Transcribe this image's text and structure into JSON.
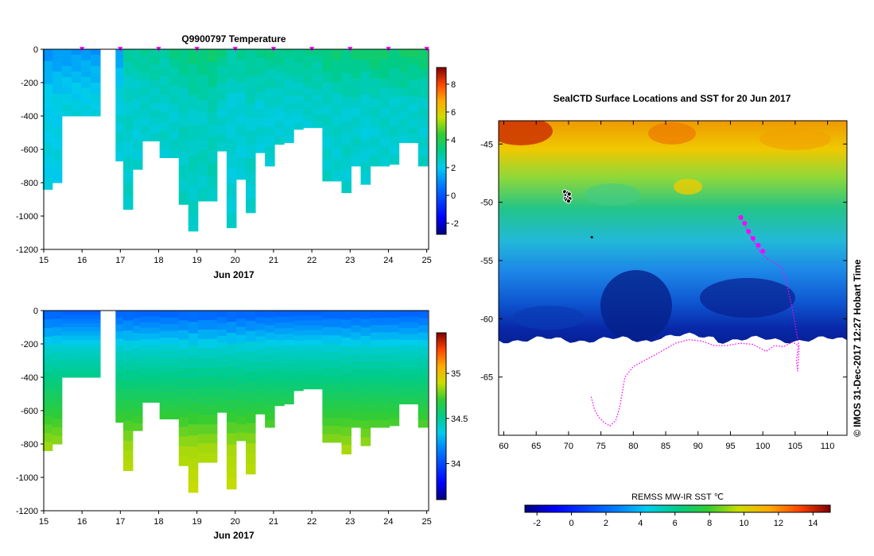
{
  "chart_data": [
    {
      "type": "heatmap",
      "title": "Q9900797  Temperature",
      "xlabel": "Jun 2017",
      "ylabel": "",
      "x_ticks": [
        "15",
        "16",
        "17",
        "18",
        "19",
        "20",
        "21",
        "22",
        "23",
        "24",
        "25"
      ],
      "x_range": [
        15,
        25.05
      ],
      "y_ticks": [
        "0",
        "-200",
        "-400",
        "-600",
        "-800",
        "-1000",
        "-1200"
      ],
      "y_range": [
        -1200,
        0
      ],
      "colorbar_ticks": [
        "-2",
        "0",
        "2",
        "4",
        "6",
        "8"
      ],
      "colorbar_range": [
        -2.8,
        9.2
      ],
      "profile_days": [
        15.1,
        15.35,
        15.6,
        15.85,
        16.1,
        16.35,
        17.0,
        17.2,
        17.45,
        17.65,
        17.9,
        18.15,
        18.4,
        18.65,
        18.9,
        19.15,
        19.4,
        19.65,
        19.9,
        20.15,
        20.4,
        20.65,
        20.9,
        21.15,
        21.4,
        21.65,
        21.9,
        22.15,
        22.4,
        22.65,
        22.9,
        23.15,
        23.4,
        23.65,
        23.9,
        24.15,
        24.4,
        24.65,
        24.9
      ],
      "profile_max_depths": [
        -840,
        -800,
        -400,
        -400,
        -400,
        -400,
        -670,
        -960,
        -720,
        -550,
        -550,
        -650,
        -650,
        -930,
        -1090,
        -910,
        -910,
        -610,
        -1070,
        -780,
        -980,
        -620,
        -700,
        -570,
        -560,
        -480,
        -470,
        -470,
        -790,
        -790,
        -860,
        -700,
        -810,
        -700,
        -700,
        -690,
        -560,
        -560,
        -700
      ],
      "temperature_surface": [
        1.0,
        1.1,
        1.0,
        1.0,
        1.0,
        1.0,
        1.2,
        2.9,
        3.0,
        3.1,
        3.2,
        3.0,
        3.4,
        3.4,
        3.6,
        3.7,
        3.8,
        3.4,
        3.0,
        3.2,
        3.3,
        3.4,
        3.4,
        3.3,
        3.2,
        3.3,
        3.4,
        3.2,
        3.6,
        3.7,
        3.5,
        3.8,
        3.6,
        3.9,
        3.8,
        3.6,
        3.9,
        3.8,
        3.9
      ],
      "temperature_deep": [
        2.1,
        2.1,
        2.2,
        2.2,
        2.2,
        2.2,
        2.3,
        2.4,
        2.3,
        2.4,
        2.4,
        2.4,
        2.4,
        2.5,
        2.5,
        2.5,
        2.6,
        2.4,
        2.3,
        2.3,
        2.4,
        2.3,
        2.3,
        2.3,
        2.3,
        2.3,
        2.4,
        2.4,
        2.4,
        2.4,
        2.4,
        2.4,
        2.3,
        2.4,
        2.4,
        2.4,
        2.4,
        2.4,
        2.4
      ],
      "surface_markers": [
        16,
        17,
        18,
        19,
        20,
        21,
        22,
        23,
        24,
        25
      ]
    },
    {
      "type": "heatmap",
      "title": "",
      "xlabel": "Jun 2017",
      "ylabel": "",
      "x_ticks": [
        "15",
        "16",
        "17",
        "18",
        "19",
        "20",
        "21",
        "22",
        "23",
        "24",
        "25"
      ],
      "x_range": [
        15,
        25.05
      ],
      "y_ticks": [
        "0",
        "-200",
        "-400",
        "-600",
        "-800",
        "-1000",
        "-1200"
      ],
      "y_range": [
        -1200,
        0
      ],
      "colorbar_ticks": [
        "34",
        "34.5",
        "35"
      ],
      "colorbar_range": [
        33.6,
        35.45
      ],
      "salinity_surface": 34.05,
      "salinity_deep": 34.75,
      "halocline_depth": -230
    },
    {
      "type": "heatmap",
      "title": "SealCTD Surface Locations and SST for 20 Jun 2017",
      "xlabel": "",
      "ylabel": "",
      "x_ticks": [
        "60",
        "65",
        "70",
        "75",
        "80",
        "85",
        "90",
        "95",
        "100",
        "105",
        "110"
      ],
      "x_range": [
        59.2,
        113
      ],
      "y_ticks": [
        "-45",
        "-50",
        "-55",
        "-60",
        "-65"
      ],
      "y_range": [
        -70,
        -43
      ],
      "colorbar_title": "REMSS MW-IR SST ℃",
      "colorbar_ticks": [
        "-2",
        "0",
        "2",
        "4",
        "6",
        "8",
        "10",
        "12",
        "14"
      ],
      "colorbar_range": [
        -2.7,
        15.0
      ],
      "ice_edge_lat": -61.8,
      "track_lon": [
        73.5,
        74.0,
        74.6,
        75.5,
        76.4,
        77.3,
        77.9,
        78.7,
        80.0,
        82.0,
        84.0,
        86.5,
        88.5,
        90.5,
        92.5,
        94.5,
        96.5,
        98.5,
        100.5,
        101.8,
        103.2,
        104.6,
        105.5,
        105.2,
        105.4,
        105.6,
        105.3,
        104.7,
        104.1,
        103.5,
        102.8,
        101.8,
        100.8,
        99.5,
        98.0,
        96.6
      ],
      "track_lat": [
        -66.7,
        -67.8,
        -68.4,
        -68.9,
        -69.2,
        -68.7,
        -67.6,
        -65.0,
        -64.1,
        -63.5,
        -62.9,
        -62.1,
        -61.8,
        -61.9,
        -62.3,
        -62.3,
        -62.1,
        -62.2,
        -62.8,
        -62.3,
        -62.4,
        -62.0,
        -62.3,
        -63.6,
        -64.5,
        -62.4,
        -61.5,
        -59.5,
        -58.0,
        -56.5,
        -55.5,
        -55.2,
        -54.9,
        -54.2,
        -52.8,
        -51.3
      ],
      "seal_cluster_lon": [
        69.4,
        69.6,
        69.8,
        69.9,
        70.0,
        70.1,
        70.2,
        69.5,
        69.7,
        70.0
      ],
      "seal_cluster_lat": [
        -49.1,
        -49.4,
        -49.6,
        -49.2,
        -49.5,
        -49.3,
        -49.7,
        -49.7,
        -49.8,
        -49.9
      ],
      "highlight_lon": [
        96.6,
        97.2,
        97.8,
        98.5,
        99.3,
        100.0
      ],
      "highlight_lat": [
        -51.3,
        -51.8,
        -52.5,
        -53.1,
        -53.7,
        -54.2
      ]
    }
  ],
  "credit": "©  IMOS 31-Dec-2017 12:27 Hobart Time",
  "colors": {
    "track": "#ff00ff",
    "seal_marker": "#ff00ff",
    "land": "#ffffff"
  }
}
